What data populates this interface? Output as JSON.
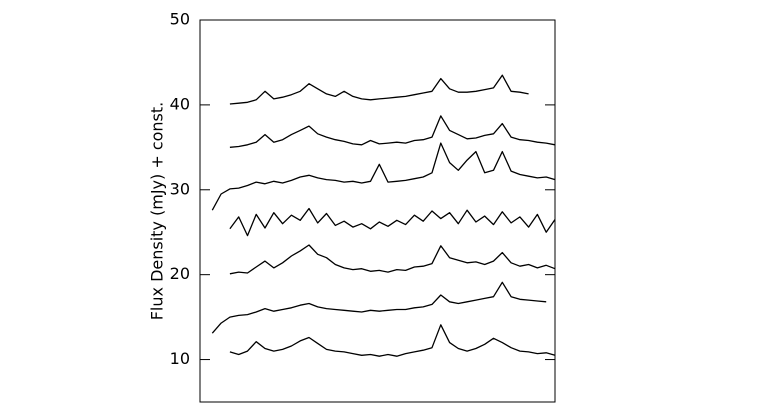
{
  "chart_data": {
    "type": "line",
    "ylabel": "Flux Density (mJy) + const.",
    "ylim": [
      5,
      50
    ],
    "yticks": [
      10,
      20,
      30,
      40,
      50
    ],
    "xlim": [
      4.4,
      14.5
    ],
    "color": "#000000",
    "x": [
      4.5,
      4.75,
      5,
      5.25,
      5.5,
      5.75,
      6,
      6.25,
      6.5,
      6.75,
      7,
      7.25,
      7.5,
      7.75,
      8,
      8.25,
      8.5,
      8.75,
      9,
      9.25,
      9.5,
      9.75,
      10,
      10.25,
      10.5,
      10.75,
      11,
      11.25,
      11.5,
      11.75,
      12,
      12.25,
      12.5,
      12.75,
      13,
      13.25,
      13.5,
      13.75,
      14,
      14.25,
      14.5
    ],
    "series": [
      {
        "values": [
          null,
          null,
          null,
          40.1,
          40.2,
          40.3,
          40.6,
          41.6,
          40.7,
          40.9,
          41.2,
          41.6,
          42.5,
          41.9,
          41.3,
          41.0,
          41.6,
          41.0,
          40.7,
          40.6,
          40.7,
          40.8,
          40.9,
          41.0,
          41.2,
          41.4,
          41.6,
          43.1,
          41.9,
          41.5,
          41.5,
          41.6,
          41.8,
          42.0,
          43.5,
          41.6,
          41.5,
          41.3,
          null,
          null,
          null
        ]
      },
      {
        "values": [
          null,
          null,
          null,
          35.0,
          35.1,
          35.3,
          35.6,
          36.5,
          35.6,
          35.9,
          36.5,
          37.0,
          37.5,
          36.6,
          36.2,
          35.9,
          35.7,
          35.4,
          35.3,
          35.8,
          35.4,
          35.5,
          35.6,
          35.5,
          35.8,
          35.9,
          36.2,
          38.7,
          37.0,
          36.5,
          36.0,
          36.1,
          36.4,
          36.6,
          37.8,
          36.2,
          35.9,
          35.8,
          35.6,
          35.5,
          35.3
        ]
      },
      {
        "values": [
          null,
          27.6,
          29.5,
          30.1,
          30.2,
          30.5,
          30.9,
          30.7,
          31.0,
          30.8,
          31.1,
          31.5,
          31.7,
          31.4,
          31.2,
          31.1,
          30.9,
          31.0,
          30.8,
          31.0,
          33.0,
          30.9,
          31.0,
          31.1,
          31.3,
          31.5,
          32.0,
          35.5,
          33.2,
          32.3,
          33.5,
          34.5,
          32.0,
          32.3,
          34.5,
          32.2,
          31.8,
          31.6,
          31.4,
          31.5,
          31.2
        ]
      },
      {
        "values": [
          null,
          null,
          null,
          25.4,
          26.8,
          24.6,
          27.1,
          25.5,
          27.3,
          26.0,
          27.0,
          26.4,
          27.8,
          26.1,
          27.2,
          25.8,
          26.3,
          25.6,
          26.0,
          25.4,
          26.2,
          25.7,
          26.4,
          25.9,
          27.0,
          26.3,
          27.5,
          26.6,
          27.3,
          26.0,
          27.6,
          26.2,
          26.9,
          25.9,
          27.4,
          26.1,
          26.8,
          25.6,
          27.1,
          25.0,
          26.5
        ]
      },
      {
        "values": [
          null,
          null,
          null,
          20.1,
          20.3,
          20.2,
          20.9,
          21.6,
          20.8,
          21.4,
          22.2,
          22.8,
          23.5,
          22.4,
          22.0,
          21.2,
          20.8,
          20.6,
          20.7,
          20.4,
          20.5,
          20.3,
          20.6,
          20.5,
          20.9,
          21.0,
          21.3,
          23.4,
          22.0,
          21.7,
          21.4,
          21.5,
          21.2,
          21.6,
          22.6,
          21.4,
          21.0,
          21.2,
          20.8,
          21.1,
          20.7
        ]
      },
      {
        "values": [
          null,
          13.1,
          14.3,
          15.0,
          15.2,
          15.3,
          15.6,
          16.0,
          15.7,
          15.9,
          16.1,
          16.4,
          16.6,
          16.2,
          16.0,
          15.9,
          15.8,
          15.7,
          15.6,
          15.8,
          15.7,
          15.8,
          15.9,
          15.9,
          16.1,
          16.2,
          16.5,
          17.6,
          16.8,
          16.6,
          16.8,
          17.0,
          17.2,
          17.4,
          19.1,
          17.4,
          17.1,
          17.0,
          16.9,
          16.8,
          null
        ]
      },
      {
        "values": [
          null,
          null,
          null,
          10.9,
          10.6,
          11.0,
          12.1,
          11.3,
          11.0,
          11.2,
          11.6,
          12.2,
          12.6,
          11.9,
          11.2,
          11.0,
          10.9,
          10.7,
          10.5,
          10.6,
          10.4,
          10.6,
          10.4,
          10.7,
          10.9,
          11.1,
          11.4,
          14.1,
          12.0,
          11.3,
          11.0,
          11.3,
          11.8,
          12.5,
          12.0,
          11.4,
          11.0,
          10.9,
          10.7,
          10.8,
          10.5
        ]
      }
    ]
  }
}
